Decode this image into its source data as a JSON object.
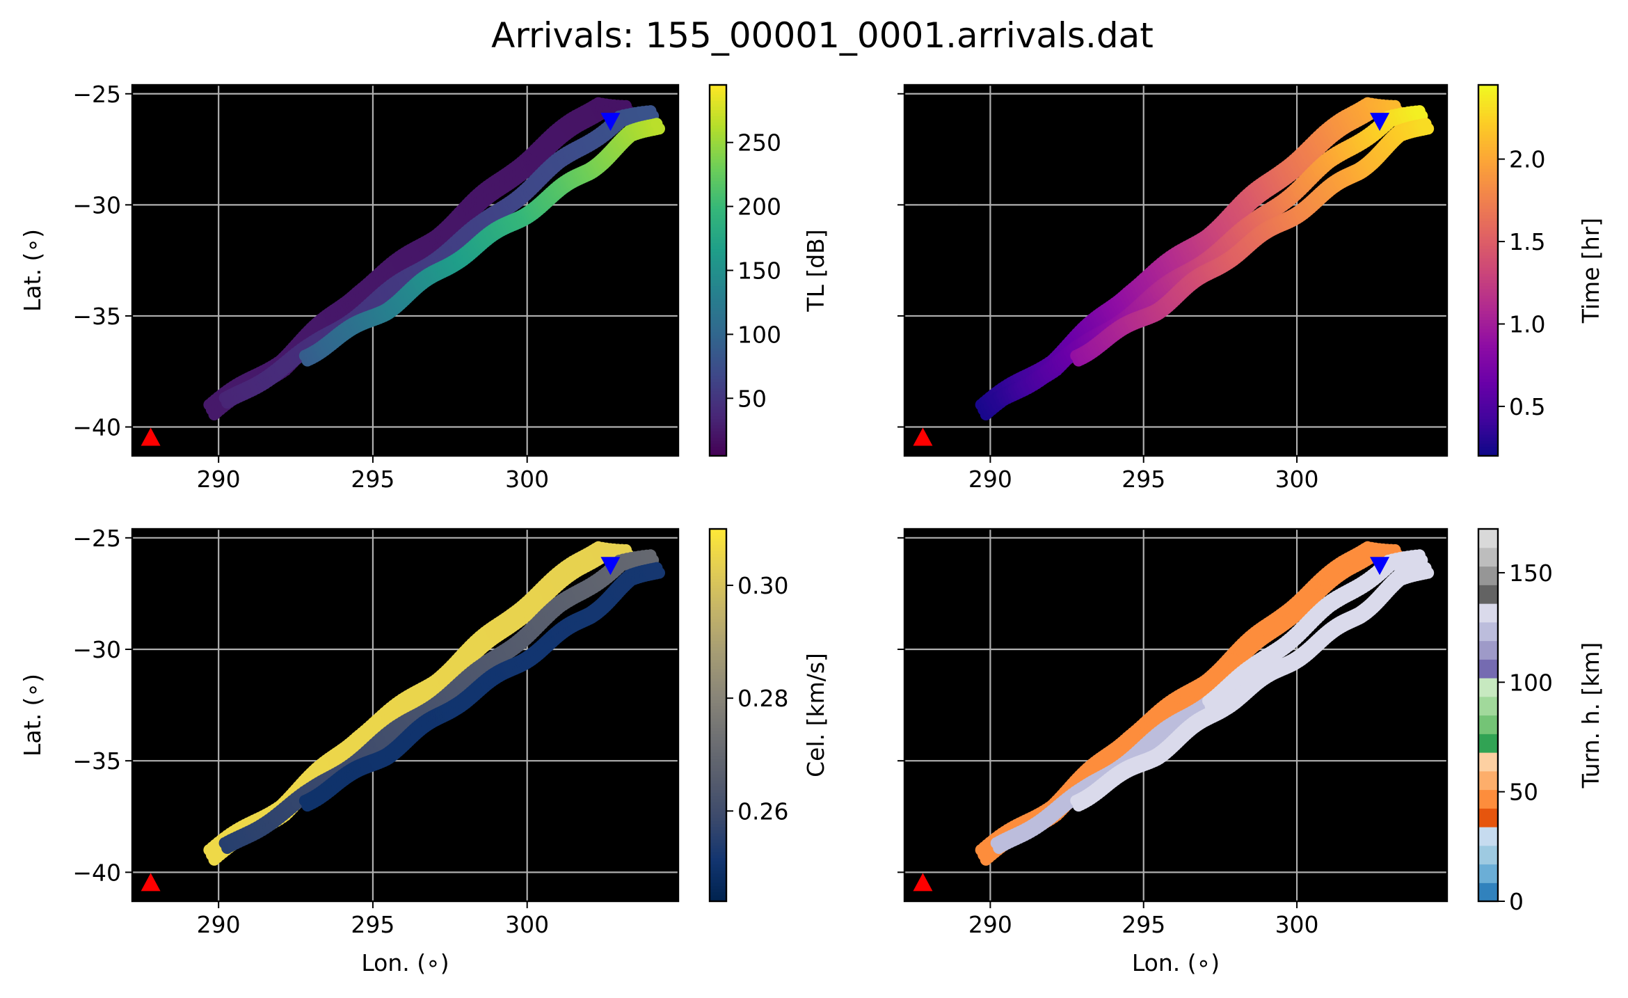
{
  "title": "Arrivals: 155_00001_0001.arrivals.dat",
  "chart_data": [
    {
      "type": "scatter",
      "panel": "top-left",
      "xlabel": "",
      "ylabel": "Lat. (∘)",
      "xlim": [
        287.2,
        304.9
      ],
      "ylim": [
        -41.3,
        -24.6
      ],
      "xticks": [
        {
          "value": 290,
          "label": "290"
        },
        {
          "value": 295,
          "label": "295"
        },
        {
          "value": 300,
          "label": "300"
        }
      ],
      "yticks": [
        {
          "value": -25,
          "label": "−25"
        },
        {
          "value": -30,
          "label": "−30"
        },
        {
          "value": -35,
          "label": "−35"
        },
        {
          "value": -40,
          "label": "−40"
        }
      ],
      "grid": true,
      "background": "#000000",
      "source_marker": {
        "lon": 287.8,
        "lat": -40.5,
        "shape": "triangle-up",
        "color": "#ff0000"
      },
      "receiver_marker": {
        "lon": 302.7,
        "lat": -26.2,
        "shape": "triangle-down",
        "color": "#0000ff"
      },
      "colorbar": {
        "label": "TL [dB]",
        "min": 5,
        "max": 295,
        "ticks": [
          {
            "value": 50,
            "label": "50"
          },
          {
            "value": 100,
            "label": "100"
          },
          {
            "value": 150,
            "label": "150"
          },
          {
            "value": 200,
            "label": "200"
          },
          {
            "value": 250,
            "label": "250"
          }
        ],
        "colormap": [
          "#440154",
          "#482878",
          "#3e4989",
          "#31688e",
          "#26828e",
          "#1f9e89",
          "#35b779",
          "#6ece58",
          "#b5de2b",
          "#fde725"
        ]
      },
      "ray_bands": [
        {
          "name": "upper",
          "path": [
            [
              289.7,
              -39.0
            ],
            [
              292.0,
              -36.9
            ],
            [
              294.5,
              -33.8
            ],
            [
              297.0,
              -31.3
            ],
            [
              299.5,
              -28.3
            ],
            [
              301.5,
              -26.1
            ],
            [
              302.3,
              -25.3
            ],
            [
              303.2,
              -25.5
            ]
          ],
          "value_start": 25,
          "value_end": 20
        },
        {
          "name": "middle",
          "path": [
            [
              290.2,
              -38.8
            ],
            [
              293.0,
              -36.3
            ],
            [
              295.8,
              -33.5
            ],
            [
              298.5,
              -30.8
            ],
            [
              301.0,
              -28.0
            ],
            [
              303.0,
              -26.0
            ],
            [
              304.0,
              -25.9
            ]
          ],
          "value_start": 35,
          "value_end": 80
        },
        {
          "name": "lower",
          "path": [
            [
              292.8,
              -36.7
            ],
            [
              295.4,
              -34.6
            ],
            [
              297.6,
              -32.4
            ],
            [
              299.8,
              -30.4
            ],
            [
              302.0,
              -28.3
            ],
            [
              303.3,
              -26.8
            ],
            [
              304.2,
              -26.3
            ]
          ],
          "value_start": 90,
          "value_end": 265
        }
      ]
    },
    {
      "type": "scatter",
      "panel": "top-right",
      "xlabel": "",
      "ylabel": "",
      "xlim": [
        287.2,
        304.9
      ],
      "ylim": [
        -41.3,
        -24.6
      ],
      "xticks": [
        {
          "value": 290,
          "label": "290"
        },
        {
          "value": 295,
          "label": "295"
        },
        {
          "value": 300,
          "label": "300"
        }
      ],
      "yticks": [],
      "grid": true,
      "background": "#000000",
      "source_marker": {
        "lon": 287.8,
        "lat": -40.5,
        "shape": "triangle-up",
        "color": "#ff0000"
      },
      "receiver_marker": {
        "lon": 302.7,
        "lat": -26.2,
        "shape": "triangle-down",
        "color": "#0000ff"
      },
      "colorbar": {
        "label": "Time [hr]",
        "min": 0.2,
        "max": 2.45,
        "ticks": [
          {
            "value": 0.5,
            "label": "0.5"
          },
          {
            "value": 1.0,
            "label": "1.0"
          },
          {
            "value": 1.5,
            "label": "1.5"
          },
          {
            "value": 2.0,
            "label": "2.0"
          }
        ],
        "colormap": [
          "#0d0887",
          "#41049d",
          "#6a00a8",
          "#8f0da4",
          "#b12a90",
          "#cc4778",
          "#e16462",
          "#f2844b",
          "#fca636",
          "#fcce25",
          "#f0f921"
        ]
      },
      "ray_bands": [
        {
          "name": "upper",
          "path": [
            [
              289.7,
              -39.0
            ],
            [
              292.0,
              -36.9
            ],
            [
              294.5,
              -33.8
            ],
            [
              297.0,
              -31.3
            ],
            [
              299.5,
              -28.3
            ],
            [
              301.5,
              -26.1
            ],
            [
              302.3,
              -25.3
            ],
            [
              303.2,
              -25.5
            ]
          ],
          "value_start": 0.25,
          "value_end": 2.1
        },
        {
          "name": "middle",
          "path": [
            [
              290.2,
              -38.8
            ],
            [
              293.0,
              -36.3
            ],
            [
              295.8,
              -33.5
            ],
            [
              298.5,
              -30.8
            ],
            [
              301.0,
              -28.0
            ],
            [
              303.0,
              -26.0
            ],
            [
              304.0,
              -25.9
            ]
          ],
          "value_start": 0.3,
          "value_end": 2.4
        },
        {
          "name": "lower",
          "path": [
            [
              292.8,
              -36.7
            ],
            [
              295.4,
              -34.6
            ],
            [
              297.6,
              -32.4
            ],
            [
              299.8,
              -30.4
            ],
            [
              302.0,
              -28.3
            ],
            [
              303.3,
              -26.8
            ],
            [
              304.2,
              -26.3
            ]
          ],
          "value_start": 0.9,
          "value_end": 2.3
        }
      ]
    },
    {
      "type": "scatter",
      "panel": "bottom-left",
      "xlabel": "Lon. (∘)",
      "ylabel": "Lat. (∘)",
      "xlim": [
        287.2,
        304.9
      ],
      "ylim": [
        -41.3,
        -24.6
      ],
      "xticks": [
        {
          "value": 290,
          "label": "290"
        },
        {
          "value": 295,
          "label": "295"
        },
        {
          "value": 300,
          "label": "300"
        }
      ],
      "yticks": [
        {
          "value": -25,
          "label": "−25"
        },
        {
          "value": -30,
          "label": "−30"
        },
        {
          "value": -35,
          "label": "−35"
        },
        {
          "value": -40,
          "label": "−40"
        }
      ],
      "grid": true,
      "background": "#000000",
      "source_marker": {
        "lon": 287.8,
        "lat": -40.5,
        "shape": "triangle-up",
        "color": "#ff0000"
      },
      "receiver_marker": {
        "lon": 302.7,
        "lat": -26.2,
        "shape": "triangle-down",
        "color": "#0000ff"
      },
      "colorbar": {
        "label": "Cel. [km/s]",
        "min": 0.244,
        "max": 0.31,
        "ticks": [
          {
            "value": 0.26,
            "label": "0.26"
          },
          {
            "value": 0.28,
            "label": "0.28"
          },
          {
            "value": 0.3,
            "label": "0.30"
          }
        ],
        "colormap": [
          "#00224e",
          "#123570",
          "#3b496c",
          "#575d6d",
          "#707173",
          "#8a8678",
          "#a59c74",
          "#c3b369",
          "#e1cc55",
          "#fee838"
        ]
      },
      "ray_bands": [
        {
          "name": "upper",
          "path": [
            [
              289.7,
              -39.0
            ],
            [
              292.0,
              -36.9
            ],
            [
              294.5,
              -33.8
            ],
            [
              297.0,
              -31.3
            ],
            [
              299.5,
              -28.3
            ],
            [
              301.5,
              -26.1
            ],
            [
              302.3,
              -25.3
            ],
            [
              303.2,
              -25.5
            ]
          ],
          "value_start": 0.306,
          "value_end": 0.304
        },
        {
          "name": "middle",
          "path": [
            [
              290.2,
              -38.8
            ],
            [
              293.0,
              -36.3
            ],
            [
              295.8,
              -33.5
            ],
            [
              298.5,
              -30.8
            ],
            [
              301.0,
              -28.0
            ],
            [
              303.0,
              -26.0
            ],
            [
              304.0,
              -25.9
            ]
          ],
          "value_start": 0.255,
          "value_end": 0.27
        },
        {
          "name": "lower",
          "path": [
            [
              292.8,
              -36.7
            ],
            [
              295.4,
              -34.6
            ],
            [
              297.6,
              -32.4
            ],
            [
              299.8,
              -30.4
            ],
            [
              302.0,
              -28.3
            ],
            [
              303.3,
              -26.8
            ],
            [
              304.2,
              -26.3
            ]
          ],
          "value_start": 0.25,
          "value_end": 0.252
        }
      ]
    },
    {
      "type": "scatter",
      "panel": "bottom-right",
      "xlabel": "Lon. (∘)",
      "ylabel": "",
      "xlim": [
        287.2,
        304.9
      ],
      "ylim": [
        -41.3,
        -24.6
      ],
      "xticks": [
        {
          "value": 290,
          "label": "290"
        },
        {
          "value": 295,
          "label": "295"
        },
        {
          "value": 300,
          "label": "300"
        }
      ],
      "yticks": [],
      "grid": true,
      "background": "#000000",
      "source_marker": {
        "lon": 287.8,
        "lat": -40.5,
        "shape": "triangle-up",
        "color": "#ff0000"
      },
      "receiver_marker": {
        "lon": 302.7,
        "lat": -26.2,
        "shape": "triangle-down",
        "color": "#0000ff"
      },
      "colorbar": {
        "label": "Turn. h. [km]",
        "min": 0,
        "max": 170,
        "ticks": [
          {
            "value": 0,
            "label": "0"
          },
          {
            "value": 50,
            "label": "50"
          },
          {
            "value": 100,
            "label": "100"
          },
          {
            "value": 150,
            "label": "150"
          }
        ],
        "colormap": [
          "#3182bd",
          "#6baed6",
          "#9ecae1",
          "#c6dbef",
          "#e6550d",
          "#fd8d3c",
          "#fdae6b",
          "#fdd0a2",
          "#31a354",
          "#74c476",
          "#a1d99b",
          "#c7e9c0",
          "#756bb1",
          "#9e9ac8",
          "#bcbddc",
          "#dadaeb",
          "#636363",
          "#969696",
          "#bdbdbd",
          "#d9d9d9"
        ]
      },
      "ray_bands": [
        {
          "name": "upper",
          "path": [
            [
              289.7,
              -39.0
            ],
            [
              292.0,
              -36.9
            ],
            [
              294.5,
              -33.8
            ],
            [
              297.0,
              -31.3
            ],
            [
              299.5,
              -28.3
            ],
            [
              301.5,
              -26.1
            ],
            [
              302.3,
              -25.3
            ],
            [
              303.2,
              -25.5
            ]
          ],
          "value_start": 45,
          "value_end": 45
        },
        {
          "name": "middle",
          "path": [
            [
              290.2,
              -38.8
            ],
            [
              293.0,
              -36.3
            ],
            [
              295.8,
              -33.5
            ],
            [
              298.5,
              -30.8
            ],
            [
              301.0,
              -28.0
            ],
            [
              303.0,
              -26.0
            ],
            [
              304.0,
              -25.9
            ]
          ],
          "value_start": 125,
          "value_end": 130
        },
        {
          "name": "lower",
          "path": [
            [
              292.8,
              -36.7
            ],
            [
              295.4,
              -34.6
            ],
            [
              297.6,
              -32.4
            ],
            [
              299.8,
              -30.4
            ],
            [
              302.0,
              -28.3
            ],
            [
              303.3,
              -26.8
            ],
            [
              304.2,
              -26.3
            ]
          ],
          "value_start": 130,
          "value_end": 130
        }
      ]
    }
  ]
}
